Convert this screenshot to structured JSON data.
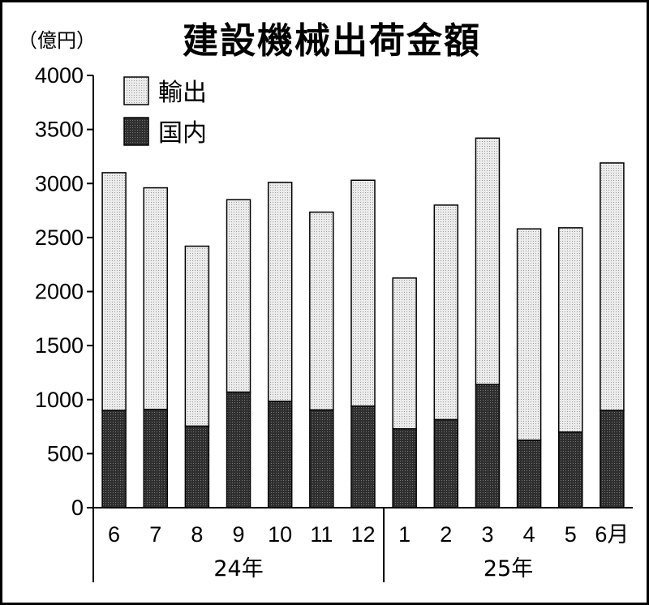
{
  "title": "建設機械出荷金額",
  "unit_label": "（億円）",
  "colors": {
    "export_fill": "#e6e6e6",
    "domestic_fill": "#333333",
    "stroke": "#000000"
  },
  "chart_data": {
    "type": "bar",
    "stacked": true,
    "title": "建設機械出荷金額",
    "ylabel": "（億円）",
    "ylim": [
      0,
      4000
    ],
    "yticks": [
      0,
      500,
      1000,
      1500,
      2000,
      2500,
      3000,
      3500,
      4000
    ],
    "categories": [
      "6",
      "7",
      "8",
      "9",
      "10",
      "11",
      "12",
      "1",
      "2",
      "3",
      "4",
      "5",
      "6月"
    ],
    "groups": [
      {
        "label": "24年",
        "count": 7
      },
      {
        "label": "25年",
        "count": 6
      }
    ],
    "series": [
      {
        "name": "国内",
        "values": [
          900,
          910,
          755,
          1070,
          985,
          905,
          940,
          730,
          815,
          1140,
          625,
          700,
          900
        ]
      },
      {
        "name": "輸出",
        "values": [
          2200,
          2050,
          1665,
          1780,
          2025,
          1830,
          2090,
          1395,
          1985,
          2280,
          1955,
          1890,
          2290
        ]
      }
    ],
    "legend": {
      "position": "top-left",
      "order": [
        "輸出",
        "国内"
      ]
    }
  }
}
